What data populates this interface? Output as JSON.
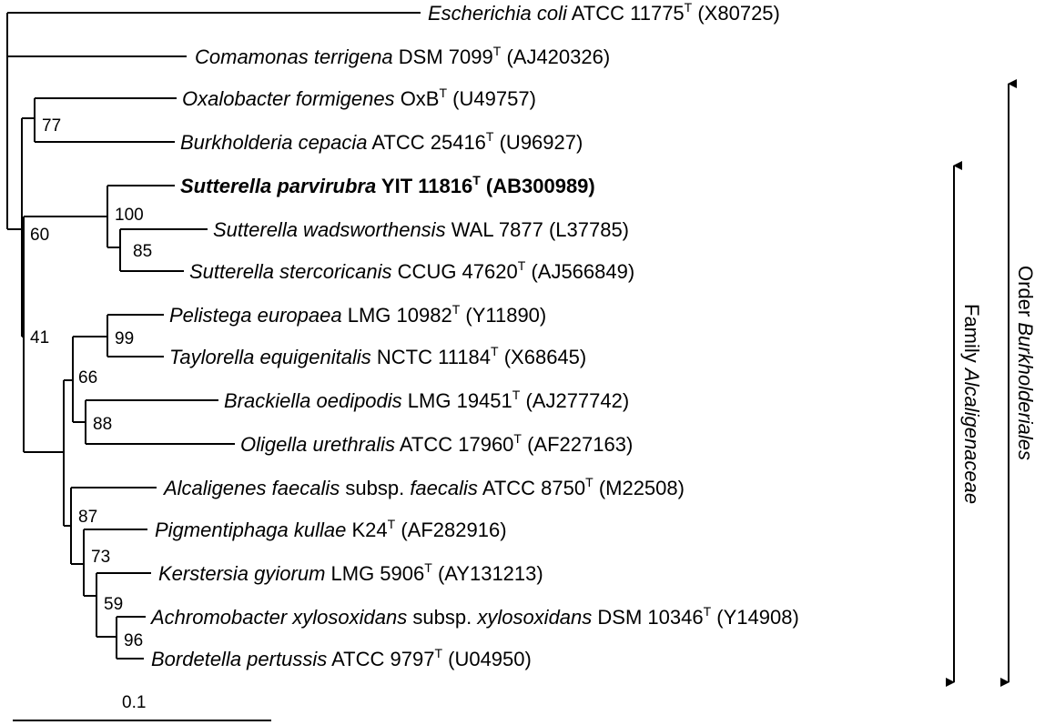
{
  "taxa": [
    {
      "id": "ecoli",
      "genus": "Escherichia coli",
      "strain": "ATCC 11775",
      "sup": "T",
      "acc": "(X80725)"
    },
    {
      "id": "coma",
      "genus": "Comamonas terrigena",
      "strain": "DSM 7099",
      "sup": "T",
      "acc": "(AJ420326)"
    },
    {
      "id": "oxalo",
      "genus": "Oxalobacter formigenes",
      "strain": "OxB",
      "sup": "T",
      "acc": "(U49757)"
    },
    {
      "id": "burk",
      "genus": "Burkholderia cepacia",
      "strain": "ATCC 25416",
      "sup": "T",
      "acc": "(U96927)"
    },
    {
      "id": "sparv",
      "genus": "Sutterella parvirubra",
      "strain": "YIT 11816",
      "sup": "T",
      "acc": "(AB300989)",
      "bold": true
    },
    {
      "id": "swads",
      "genus": "Sutterella wadsworthensis",
      "strain": "WAL 7877",
      "sup": "",
      "acc": "(L37785)"
    },
    {
      "id": "sster",
      "genus": "Sutterella stercoricanis",
      "strain": "CCUG 47620",
      "sup": "T",
      "acc": "(AJ566849)"
    },
    {
      "id": "peli",
      "genus": "Pelistega europaea",
      "strain": "LMG 10982",
      "sup": "T",
      "acc": "(Y11890)"
    },
    {
      "id": "taylo",
      "genus": "Taylorella equigenitalis",
      "strain": "NCTC 11184",
      "sup": "T",
      "acc": "(X68645)"
    },
    {
      "id": "brack",
      "genus": "Brackiella oedipodis",
      "strain": "LMG 19451",
      "sup": "T",
      "acc": "(AJ277742)"
    },
    {
      "id": "olig",
      "genus": "Oligella urethralis",
      "strain": "ATCC 17960",
      "sup": "T",
      "acc": "(AF227163)"
    },
    {
      "id": "alcal",
      "genus": "Alcaligenes faecalis",
      "mid": "subsp.",
      "sub": "faecalis",
      "strain": "ATCC 8750",
      "sup": "T",
      "acc": "(M22508)"
    },
    {
      "id": "pigm",
      "genus": "Pigmentiphaga kullae",
      "strain": "K24",
      "sup": "T",
      "acc": "(AF282916)"
    },
    {
      "id": "kers",
      "genus": "Kerstersia gyiorum",
      "strain": "LMG 5906",
      "sup": "T",
      "acc": "(AY131213)"
    },
    {
      "id": "achro",
      "genus": "Achromobacter xylosoxidans",
      "mid": "subsp.",
      "sub": "xylosoxidans",
      "strain": "DSM 10346",
      "sup": "T",
      "acc": "(Y14908)"
    },
    {
      "id": "borde",
      "genus": "Bordetella pertussis",
      "strain": "ATCC 9797",
      "sup": "T",
      "acc": "(U04950)"
    }
  ],
  "bootstrap": [
    "77",
    "60",
    "100",
    "85",
    "41",
    "66",
    "99",
    "88",
    "87",
    "73",
    "59",
    "96"
  ],
  "groups": {
    "family": {
      "prefix": "Family",
      "name": "Alcaligenaceae"
    },
    "order": {
      "prefix": "Order",
      "name": "Burkholderiales"
    }
  },
  "scale_bar": {
    "label": "0.1",
    "value": 0.1
  }
}
